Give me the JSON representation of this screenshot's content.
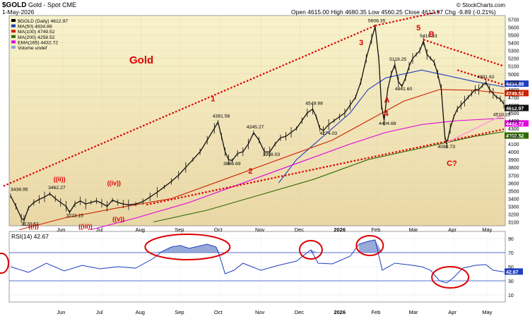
{
  "header": {
    "symbol": "$GOLD",
    "name": "Gold - Spot CME",
    "date": "1-May-2026",
    "ohlc": "Open 4615.00  High 4680.35  Low 4560.25  Close 4612.97  Chg -9.89 (-0.21%)",
    "credit": "© StockCharts.com"
  },
  "legend_main": [
    {
      "label": "$GOLD (Daily) 4612.97",
      "color": "#000000"
    },
    {
      "label": "MA(50) 4834.88",
      "color": "#1f3fbf"
    },
    {
      "label": "MA(100) 4749.52",
      "color": "#cc2200"
    },
    {
      "label": "MA(200) 4258.52",
      "color": "#2e6b00"
    },
    {
      "label": "EMA(165) 4432.72",
      "color": "#e000e0"
    },
    {
      "label": "Volume undef",
      "color": "#8aa4d0"
    }
  ],
  "rsi_legend": "RSI(14) 42.67",
  "big_label": "Gold",
  "colors": {
    "price": "#111111",
    "ma50": "#1f3fbf",
    "ma100": "#cc2200",
    "ma200": "#2e6b00",
    "ema165": "#e000e0",
    "rsi": "#1f3fbf",
    "annot": "#dd0000",
    "panel_top": "#f7f1c8",
    "panel_bottom": "#ecd9a8"
  },
  "chart_data": {
    "type": "line",
    "x_ticks": [
      "Jun",
      "Jul",
      "Aug",
      "Sep",
      "Oct",
      "Nov",
      "Dec",
      "2026",
      "Feb",
      "Mar",
      "Apr",
      "May"
    ],
    "y_ticks": [
      3100,
      3200,
      3300,
      3400,
      3500,
      3600,
      3700,
      3800,
      3900,
      4000,
      4100,
      4200,
      4300,
      4400,
      4500,
      4600,
      4700,
      4800,
      4900,
      5000,
      5100,
      5200,
      5300,
      5400,
      5500,
      5600,
      5700
    ],
    "ylim": [
      3050,
      5750
    ],
    "price_series": {
      "name": "$GOLD (Daily)",
      "points": [
        [
          0,
          3435
        ],
        [
          0.3,
          3300
        ],
        [
          0.6,
          3150
        ],
        [
          0.75,
          3120
        ],
        [
          1.0,
          3280
        ],
        [
          1.3,
          3350
        ],
        [
          1.6,
          3390
        ],
        [
          1.9,
          3420
        ],
        [
          2.2,
          3462
        ],
        [
          2.5,
          3400
        ],
        [
          2.8,
          3350
        ],
        [
          3.1,
          3300
        ],
        [
          3.3,
          3223
        ],
        [
          3.6,
          3330
        ],
        [
          3.9,
          3370
        ],
        [
          4.2,
          3330
        ],
        [
          4.5,
          3350
        ],
        [
          4.8,
          3370
        ],
        [
          5.1,
          3340
        ],
        [
          5.4,
          3300
        ],
        [
          5.7,
          3380
        ],
        [
          6.0,
          3350
        ],
        [
          6.3,
          3330
        ],
        [
          6.6,
          3320
        ],
        [
          7.0,
          3330
        ],
        [
          7.4,
          3360
        ],
        [
          7.8,
          3420
        ],
        [
          8.2,
          3480
        ],
        [
          8.6,
          3550
        ],
        [
          9.0,
          3620
        ],
        [
          9.4,
          3700
        ],
        [
          9.8,
          3800
        ],
        [
          10.2,
          3900
        ],
        [
          10.6,
          4000
        ],
        [
          11.0,
          4150
        ],
        [
          11.4,
          4300
        ],
        [
          11.6,
          4381
        ],
        [
          11.8,
          4200
        ],
        [
          12.0,
          4000
        ],
        [
          12.2,
          3900
        ],
        [
          12.4,
          3887
        ],
        [
          12.7,
          3980
        ],
        [
          13.0,
          4000
        ],
        [
          13.3,
          4100
        ],
        [
          13.6,
          4245
        ],
        [
          13.9,
          4150
        ],
        [
          14.2,
          4000
        ],
        [
          14.5,
          3998
        ],
        [
          14.8,
          4100
        ],
        [
          15.1,
          4180
        ],
        [
          15.4,
          4200
        ],
        [
          15.7,
          4250
        ],
        [
          16.0,
          4300
        ],
        [
          16.3,
          4400
        ],
        [
          16.6,
          4500
        ],
        [
          16.9,
          4549
        ],
        [
          17.1,
          4450
        ],
        [
          17.3,
          4300
        ],
        [
          17.5,
          4274
        ],
        [
          17.8,
          4350
        ],
        [
          18.1,
          4400
        ],
        [
          18.4,
          4450
        ],
        [
          18.7,
          4500
        ],
        [
          19.0,
          4600
        ],
        [
          19.3,
          4700
        ],
        [
          19.6,
          4900
        ],
        [
          19.9,
          5200
        ],
        [
          20.2,
          5450
        ],
        [
          20.4,
          5608
        ],
        [
          20.6,
          5200
        ],
        [
          20.75,
          4600
        ],
        [
          20.9,
          4404
        ],
        [
          21.1,
          4800
        ],
        [
          21.3,
          5000
        ],
        [
          21.5,
          5119
        ],
        [
          21.7,
          4900
        ],
        [
          21.9,
          4841
        ],
        [
          22.1,
          4950
        ],
        [
          22.3,
          5100
        ],
        [
          22.5,
          5200
        ],
        [
          22.7,
          5250
        ],
        [
          22.9,
          5300
        ],
        [
          23.1,
          5419
        ],
        [
          23.3,
          5250
        ],
        [
          23.5,
          5200
        ],
        [
          23.7,
          5150
        ],
        [
          23.9,
          5000
        ],
        [
          24.1,
          4800
        ],
        [
          24.2,
          4500
        ],
        [
          24.3,
          4200
        ],
        [
          24.4,
          4098
        ],
        [
          24.6,
          4300
        ],
        [
          24.8,
          4450
        ],
        [
          25.0,
          4550
        ],
        [
          25.2,
          4600
        ],
        [
          25.4,
          4650
        ],
        [
          25.6,
          4700
        ],
        [
          25.8,
          4750
        ],
        [
          26.0,
          4800
        ],
        [
          26.2,
          4800
        ],
        [
          26.4,
          4850
        ],
        [
          26.6,
          4891
        ],
        [
          26.8,
          4800
        ],
        [
          27.0,
          4750
        ],
        [
          27.2,
          4700
        ],
        [
          27.4,
          4680
        ],
        [
          27.6,
          4612
        ]
      ]
    },
    "ma_series": [
      {
        "name": "MA(50)",
        "points": [
          [
            15.0,
            3600
          ],
          [
            16.0,
            3900
          ],
          [
            17.0,
            4100
          ],
          [
            18.0,
            4300
          ],
          [
            19.0,
            4500
          ],
          [
            20.0,
            4800
          ],
          [
            21.0,
            4950
          ],
          [
            22.0,
            5000
          ],
          [
            23.0,
            5050
          ],
          [
            24.0,
            5000
          ],
          [
            25.0,
            4950
          ],
          [
            26.0,
            4900
          ],
          [
            27.6,
            4835
          ]
        ]
      },
      {
        "name": "MA(100)",
        "points": [
          [
            0.5,
            3000
          ],
          [
            3.0,
            3150
          ],
          [
            6.0,
            3280
          ],
          [
            9.0,
            3400
          ],
          [
            12.0,
            3650
          ],
          [
            15.0,
            3900
          ],
          [
            18.0,
            4150
          ],
          [
            20.0,
            4400
          ],
          [
            22.0,
            4650
          ],
          [
            24.0,
            4800
          ],
          [
            26.0,
            4790
          ],
          [
            27.6,
            4750
          ]
        ]
      },
      {
        "name": "MA(200)",
        "points": [
          [
            8.0,
            3100
          ],
          [
            11.0,
            3250
          ],
          [
            14.0,
            3450
          ],
          [
            17.0,
            3650
          ],
          [
            20.0,
            3900
          ],
          [
            22.0,
            4000
          ],
          [
            24.0,
            4100
          ],
          [
            26.0,
            4200
          ],
          [
            27.6,
            4258
          ]
        ]
      },
      {
        "name": "EMA(165)",
        "points": [
          [
            4.5,
            3000
          ],
          [
            7.0,
            3150
          ],
          [
            10.0,
            3350
          ],
          [
            13.0,
            3600
          ],
          [
            16.0,
            3850
          ],
          [
            19.0,
            4100
          ],
          [
            21.0,
            4250
          ],
          [
            23.0,
            4350
          ],
          [
            25.0,
            4400
          ],
          [
            27.6,
            4432
          ]
        ]
      }
    ],
    "price_labels": [
      "3438.95",
      "3120.62",
      "3462.27",
      "3223.15",
      "4381.58",
      "3886.69",
      "4245.27",
      "3998.03",
      "4549.98",
      "4274.03",
      "5608.35",
      "4404.68",
      "5119.25",
      "4841.60",
      "5419.33",
      "4098.73",
      "4891.62",
      "4510.33"
    ],
    "right_labels": [
      {
        "text": "4834.88",
        "value": 4834.88,
        "bg": "#1f3fbf",
        "fg": "#ffffff"
      },
      {
        "text": "4749.52",
        "value": 4749.52,
        "bg": "#cc2200",
        "fg": "#ffffff"
      },
      {
        "text": "4612.97",
        "value": 4612.97,
        "bg": "#111111",
        "fg": "#ffffff"
      },
      {
        "text": "4432.72",
        "value": 4432.72,
        "bg": "#e000e0",
        "fg": "#ffffff"
      },
      {
        "text": "4258.52",
        "value": 4258.52,
        "bg": "#2e6b00",
        "fg": "#ffffff"
      }
    ],
    "wave_labels": [
      "1",
      "2",
      "3",
      "4",
      "5",
      "A",
      "B",
      "C?",
      "((i))",
      "((ii))",
      "((iii))",
      "((iv))",
      "((v))"
    ],
    "rsi": {
      "y_ticks": [
        10,
        30,
        50,
        70,
        90
      ],
      "ylim": [
        0,
        100
      ],
      "last": "42.67",
      "points": [
        [
          0,
          50
        ],
        [
          1,
          42
        ],
        [
          2,
          55
        ],
        [
          3,
          44
        ],
        [
          4,
          52
        ],
        [
          5,
          47
        ],
        [
          6,
          50
        ],
        [
          7,
          48
        ],
        [
          8,
          62
        ],
        [
          8.5,
          72
        ],
        [
          9,
          78
        ],
        [
          9.5,
          80
        ],
        [
          10,
          76
        ],
        [
          10.5,
          79
        ],
        [
          11,
          82
        ],
        [
          11.5,
          78
        ],
        [
          11.7,
          65
        ],
        [
          12,
          40
        ],
        [
          12.5,
          45
        ],
        [
          13,
          55
        ],
        [
          14,
          45
        ],
        [
          15,
          52
        ],
        [
          16,
          58
        ],
        [
          16.8,
          74
        ],
        [
          17.2,
          55
        ],
        [
          18,
          54
        ],
        [
          19,
          65
        ],
        [
          19.5,
          82
        ],
        [
          20,
          86
        ],
        [
          20.4,
          88
        ],
        [
          20.8,
          45
        ],
        [
          21.5,
          55
        ],
        [
          22.5,
          52
        ],
        [
          23,
          50
        ],
        [
          23.5,
          45
        ],
        [
          24,
          30
        ],
        [
          24.4,
          27
        ],
        [
          24.8,
          35
        ],
        [
          25.3,
          48
        ],
        [
          26,
          52
        ],
        [
          26.6,
          53
        ],
        [
          27,
          45
        ],
        [
          27.6,
          42.67
        ]
      ]
    }
  }
}
